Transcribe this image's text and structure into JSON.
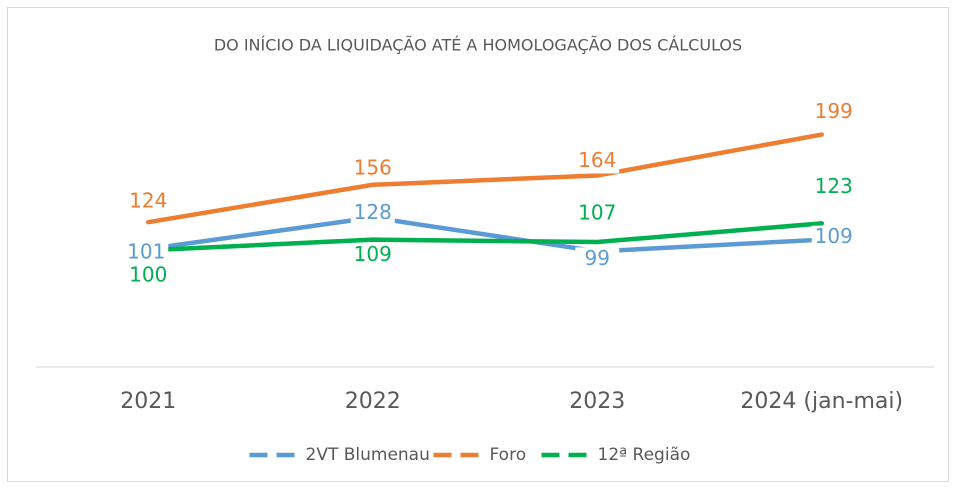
{
  "chart_data": {
    "type": "line",
    "title": "DO INÍCIO DA LIQUIDAÇÃO ATÉ A HOMOLOGAÇÃO DOS CÁLCULOS",
    "categories": [
      "2021",
      "2022",
      "2023",
      "2024 (jan-mai)"
    ],
    "series": [
      {
        "name": "2VT Blumenau",
        "color": "#5b9bd5",
        "values": [
          101,
          128,
          99,
          109
        ]
      },
      {
        "name": "Foro",
        "color": "#ed7d31",
        "values": [
          124,
          156,
          164,
          199
        ]
      },
      {
        "name": "12ª Região",
        "color": "#00b050",
        "values": [
          100,
          109,
          107,
          123
        ]
      }
    ],
    "ylim": [
      0,
      250
    ],
    "legend": "bottom"
  }
}
